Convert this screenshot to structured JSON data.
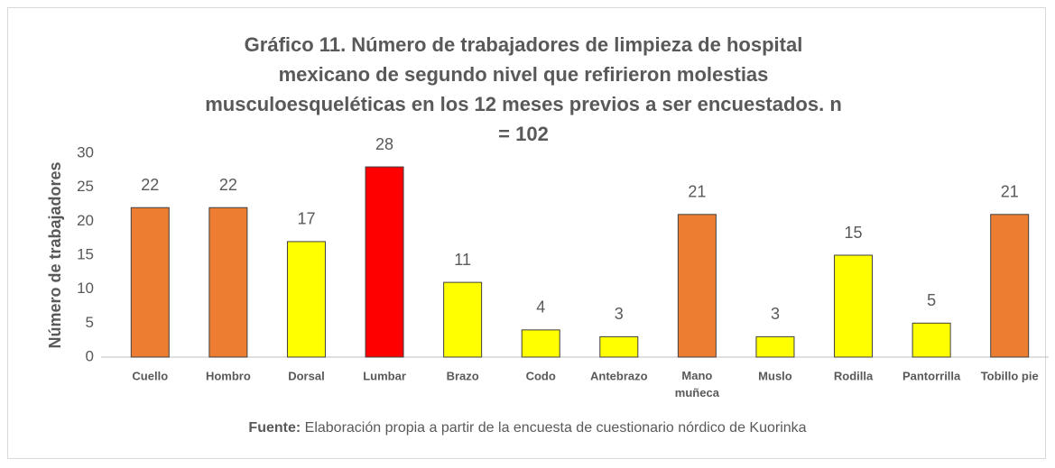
{
  "chart_data": {
    "type": "bar",
    "title": "Gráfico 11. Número de trabajadores de limpieza de hospital mexicano de segundo nivel que refirieron molestias musculoesqueléticas en los 12 meses previos a ser encuestados. n = 102",
    "ylabel": "Número de trabajadores",
    "categories": [
      "Cuello",
      "Hombro",
      "Dorsal",
      "Lumbar",
      "Brazo",
      "Codo",
      "Antebrazo",
      "Mano muñeca",
      "Muslo",
      "Rodilla",
      "Pantorrilla",
      "Tobillo pie"
    ],
    "values": [
      22,
      22,
      17,
      28,
      11,
      4,
      3,
      21,
      3,
      15,
      5,
      21
    ],
    "colors": [
      "#ED7D31",
      "#ED7D31",
      "#FFFF00",
      "#FF0000",
      "#FFFF00",
      "#FFFF00",
      "#FFFF00",
      "#ED7D31",
      "#FFFF00",
      "#FFFF00",
      "#FFFF00",
      "#ED7D31"
    ],
    "ylim": [
      0,
      30
    ],
    "yticks": [
      0,
      5,
      10,
      15,
      20,
      25,
      30
    ],
    "grid": false,
    "source_label": "Fuente:",
    "source": "Elaboración propia a partir de la encuesta de cuestionario nórdico de Kuorinka"
  }
}
